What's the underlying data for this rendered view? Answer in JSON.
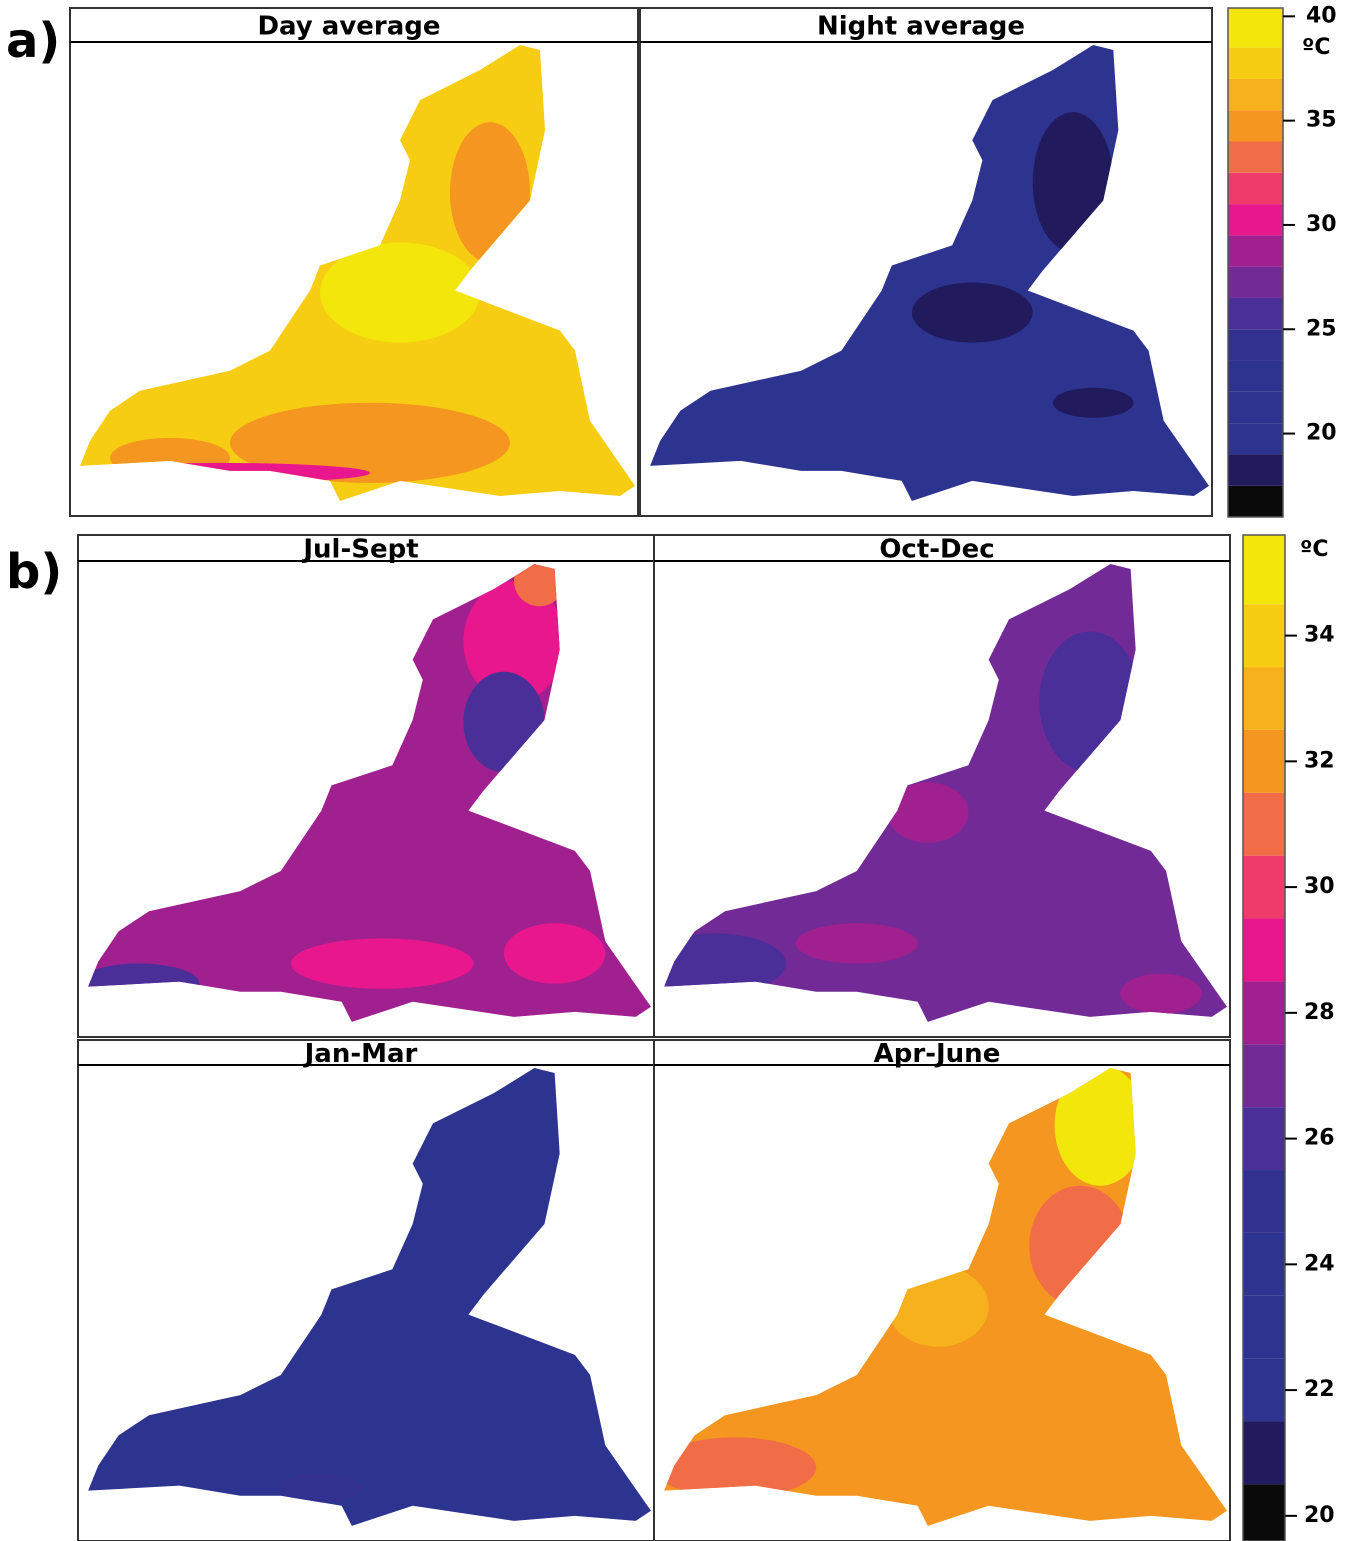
{
  "panel_a": {
    "label": "a)",
    "panels": [
      {
        "title": "Day average"
      },
      {
        "title": "Night average"
      }
    ],
    "colorbar": {
      "unit": "ºC",
      "ticks": [
        20,
        25,
        30,
        35,
        40
      ],
      "breaks": [
        16,
        17.5,
        19,
        20.5,
        22,
        23.5,
        25,
        26.5,
        28,
        29.5,
        31,
        32.5,
        34,
        35.5,
        37,
        38.5,
        40.4
      ],
      "colors": [
        "#0a0a0a",
        "#211a5c",
        "#2c3490",
        "#2c3490",
        "#2c3490",
        "#33318f",
        "#4a2f98",
        "#722a96",
        "#a12090",
        "#e8178e",
        "#ef3a6c",
        "#f06d47",
        "#f4961f",
        "#f7b11c",
        "#f6cd12",
        "#f3e60b"
      ]
    }
  },
  "panel_b": {
    "label": "b)",
    "panels": [
      {
        "title": "Jul-Sept"
      },
      {
        "title": "Oct-Dec"
      },
      {
        "title": "Jan-Mar"
      },
      {
        "title": "Apr-June"
      }
    ],
    "colorbar": {
      "unit": "ºC",
      "ticks": [
        20,
        22,
        24,
        26,
        28,
        30,
        32,
        34
      ],
      "breaks": [
        19.6,
        20.5,
        21.5,
        22.5,
        23.5,
        24.5,
        25.5,
        26.5,
        27.5,
        28.5,
        29.5,
        30.5,
        31.5,
        32.5,
        33.5,
        34.5,
        35.6
      ],
      "colors": [
        "#0a0a0a",
        "#211a5c",
        "#2c3490",
        "#2c3490",
        "#2c3490",
        "#33318f",
        "#4a2f98",
        "#722a96",
        "#a12090",
        "#e8178e",
        "#ef3a6c",
        "#f06d47",
        "#f4961f",
        "#f7b11c",
        "#f6cd12",
        "#f3e60b"
      ]
    }
  }
}
